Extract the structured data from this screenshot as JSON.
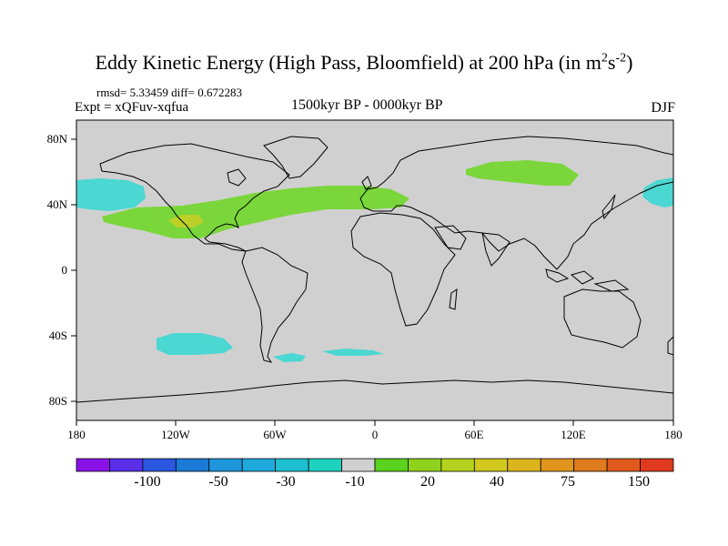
{
  "title_parts": {
    "main": "Eddy Kinetic Energy (High Pass, Bloomfield) at 200 hPa (in m",
    "sup1": "2",
    "mid": "s",
    "sup2": "-2",
    "end": ")"
  },
  "stats": "rmsd= 5.33459 diff= 0.672283",
  "experiment": "Expt = xQFuv-xqfua",
  "period": "1500kyr BP - 0000kyr BP",
  "season": "DJF",
  "latitude_labels": [
    "80N",
    "40N",
    "0",
    "40S",
    "80S"
  ],
  "longitude_labels": [
    "180",
    "120W",
    "60W",
    "0",
    "60E",
    "120E",
    "180"
  ],
  "colorbar": {
    "colors": [
      "#8a12e6",
      "#5a2ee6",
      "#2a56e0",
      "#1a7ad6",
      "#1e96dc",
      "#1eaadc",
      "#1ebfd0",
      "#1ed2c0",
      "#d0d0d0",
      "#5ad21e",
      "#8ed21e",
      "#b4d21e",
      "#d2c81e",
      "#dcb41e",
      "#e0961e",
      "#e07a1e",
      "#e05a1e",
      "#e03a1e"
    ],
    "labels": [
      "-100",
      "-50",
      "-30",
      "-10",
      "20",
      "40",
      "75",
      "150"
    ]
  },
  "anomaly_regions": [
    {
      "name": "north-pacific-negative",
      "category": "-10",
      "color": "#4bd7d2"
    },
    {
      "name": "east-pacific-negative",
      "category": "-10",
      "color": "#4bd7d2"
    },
    {
      "name": "north-atlantic-jet-positive",
      "category": "20",
      "color": "#7ad63a"
    },
    {
      "name": "siberia-positive",
      "category": "20",
      "color": "#7ad63a"
    },
    {
      "name": "mexico-positive-core",
      "category": "40",
      "color": "#bcd028"
    },
    {
      "name": "south-pacific-negative",
      "category": "-10",
      "color": "#4bd7d2"
    },
    {
      "name": "south-atlantic-negative-1",
      "category": "-10",
      "color": "#4bd7d2"
    },
    {
      "name": "south-atlantic-negative-2",
      "category": "-10",
      "color": "#4bd7d2"
    }
  ]
}
